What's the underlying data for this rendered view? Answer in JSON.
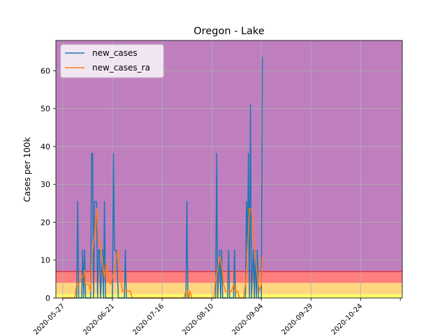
{
  "chart_data": {
    "type": "line",
    "title": "Oregon - Lake",
    "xlabel": "",
    "ylabel": "Cases per 100k",
    "ylim": [
      0,
      68
    ],
    "x_tick_labels": [
      "2020-05-27",
      "2020-06-21",
      "2020-07-16",
      "2020-08-10",
      "2020-09-04",
      "2020-09-29",
      "2020-10-24"
    ],
    "x_tick_days": [
      0,
      25,
      50,
      75,
      100,
      125,
      150
    ],
    "xlim_days": [
      -3.5,
      171
    ],
    "y_ticks": [
      0,
      10,
      20,
      30,
      40,
      50,
      60
    ],
    "bands": [
      {
        "from": 0,
        "to": 1,
        "color": "#ffff66"
      },
      {
        "from": 1,
        "to": 4,
        "color": "#ffd680"
      },
      {
        "from": 4,
        "to": 7,
        "color": "#ff7f7f"
      },
      {
        "from": 7,
        "to": 68,
        "color": "#bf7fbf"
      }
    ],
    "threshold_line": 7,
    "threshold_color": "#d62728",
    "grid": true,
    "legend": "top-left",
    "series": [
      {
        "name": "new_cases",
        "color": "#1f77b4",
        "points": [
          [
            0,
            0
          ],
          [
            6,
            0
          ],
          [
            7,
            0
          ],
          [
            7.5,
            25.5
          ],
          [
            8,
            0
          ],
          [
            9.5,
            0
          ],
          [
            10,
            12.7
          ],
          [
            10.5,
            0
          ],
          [
            11,
            12.7
          ],
          [
            11.5,
            0
          ],
          [
            14,
            0
          ],
          [
            14.5,
            38.2
          ],
          [
            15,
            38.2
          ],
          [
            15.5,
            0
          ],
          [
            16,
            25.5
          ],
          [
            17,
            25.5
          ],
          [
            17.5,
            0
          ],
          [
            18,
            12.7
          ],
          [
            18.5,
            12.7
          ],
          [
            19,
            0
          ],
          [
            20,
            12.7
          ],
          [
            20.5,
            0
          ],
          [
            21,
            25.5
          ],
          [
            21.5,
            0
          ],
          [
            25,
            0
          ],
          [
            25.5,
            38.2
          ],
          [
            26,
            12.7
          ],
          [
            27,
            12.7
          ],
          [
            28,
            0
          ],
          [
            31,
            0
          ],
          [
            31.5,
            12.7
          ],
          [
            32,
            0
          ],
          [
            62,
            0
          ],
          [
            62.5,
            25.5
          ],
          [
            63,
            0
          ],
          [
            77,
            0
          ],
          [
            77.5,
            38.2
          ],
          [
            78,
            0
          ],
          [
            79,
            12.7
          ],
          [
            79.5,
            0
          ],
          [
            80,
            12.7
          ],
          [
            80.5,
            0
          ],
          [
            83,
            0
          ],
          [
            83.5,
            12.7
          ],
          [
            84,
            0
          ],
          [
            86,
            0
          ],
          [
            86.5,
            12.7
          ],
          [
            87,
            0
          ],
          [
            92,
            0
          ],
          [
            92.5,
            25.5
          ],
          [
            93,
            12.7
          ],
          [
            93.5,
            38.2
          ],
          [
            94,
            0
          ],
          [
            94.5,
            51
          ],
          [
            95,
            0
          ],
          [
            96,
            12.7
          ],
          [
            96.5,
            0
          ],
          [
            97,
            12.7
          ],
          [
            97.5,
            0
          ],
          [
            98,
            12.7
          ],
          [
            98.5,
            0
          ],
          [
            99,
            0
          ],
          [
            100,
            0
          ],
          [
            100.5,
            63.7
          ]
        ]
      },
      {
        "name": "new_cases_ra",
        "color": "#ff7f0e",
        "points": [
          [
            0,
            0
          ],
          [
            6,
            0
          ],
          [
            7,
            3.6
          ],
          [
            8,
            3.6
          ],
          [
            9,
            5.4
          ],
          [
            10,
            5.4
          ],
          [
            11,
            7.3
          ],
          [
            11.5,
            3.6
          ],
          [
            13,
            3.6
          ],
          [
            14,
            1.8
          ],
          [
            14.5,
            9.1
          ],
          [
            15,
            12.7
          ],
          [
            16,
            16.4
          ],
          [
            17,
            23.6
          ],
          [
            18,
            14.6
          ],
          [
            19,
            14.6
          ],
          [
            20,
            9.1
          ],
          [
            21,
            5.5
          ],
          [
            22,
            9.1
          ],
          [
            23,
            5.5
          ],
          [
            24,
            3.6
          ],
          [
            25,
            5.5
          ],
          [
            26,
            7.3
          ],
          [
            27,
            10.9
          ],
          [
            28,
            12.7
          ],
          [
            29,
            5.5
          ],
          [
            30,
            1.8
          ],
          [
            31,
            1.8
          ],
          [
            32,
            1.8
          ],
          [
            34,
            1.8
          ],
          [
            35,
            0
          ],
          [
            61,
            0
          ],
          [
            62,
            1.8
          ],
          [
            63,
            1.8
          ],
          [
            63.5,
            0
          ],
          [
            64,
            1.8
          ],
          [
            65,
            0
          ],
          [
            76,
            0
          ],
          [
            77,
            5.5
          ],
          [
            78,
            7.3
          ],
          [
            79,
            10.9
          ],
          [
            80,
            9.1
          ],
          [
            81,
            3.6
          ],
          [
            82,
            1.8
          ],
          [
            84,
            1.8
          ],
          [
            85,
            1.8
          ],
          [
            86,
            3.6
          ],
          [
            87,
            1.8
          ],
          [
            88,
            1.8
          ],
          [
            89,
            0
          ],
          [
            91,
            0
          ],
          [
            92,
            3.6
          ],
          [
            93,
            10.9
          ],
          [
            94,
            23.6
          ],
          [
            95,
            23.6
          ],
          [
            96,
            18.2
          ],
          [
            97,
            10.9
          ],
          [
            98,
            5.5
          ],
          [
            99,
            1.8
          ],
          [
            100,
            3.6
          ],
          [
            100.5,
            10.9
          ]
        ]
      }
    ]
  }
}
